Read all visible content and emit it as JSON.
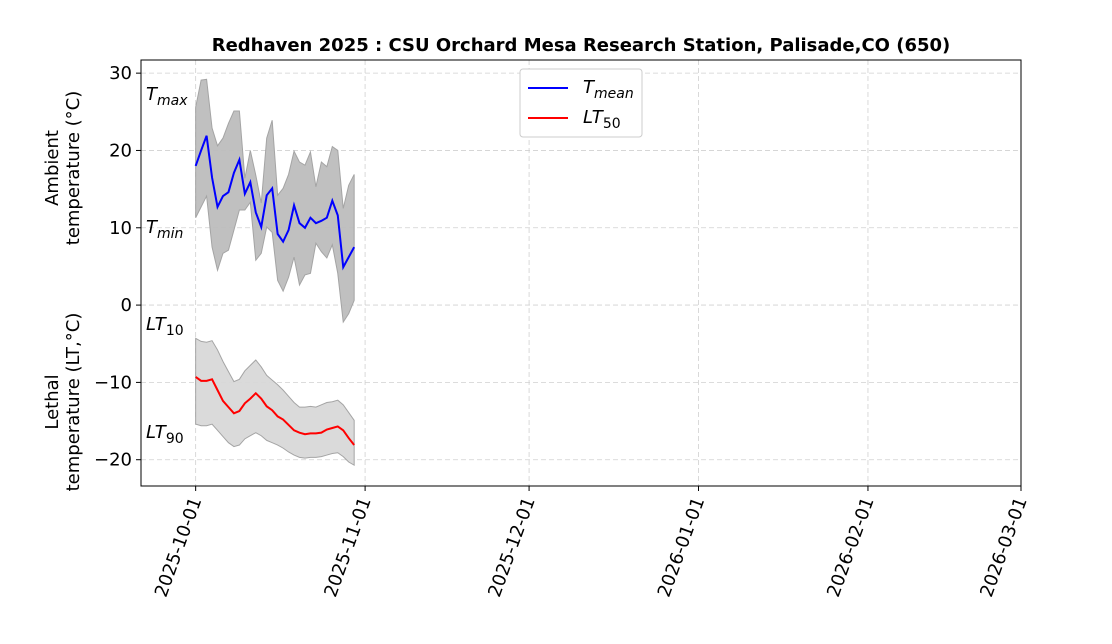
{
  "chart_data": {
    "type": "line",
    "title": "Redhaven 2025 : CSU Orchard Mesa Research Station, Palisade,CO (650)",
    "ylabel_top": [
      "Ambient",
      "temperature (°C)"
    ],
    "ylabel_bottom": [
      "Lethal",
      "temperature (LT,°C)"
    ],
    "start_date": "2025-10-01",
    "xlim": [
      "2025-09-21",
      "2026-03-01"
    ],
    "ylim": [
      -23.4,
      31.7
    ],
    "grid": true,
    "xticks": [
      "2025-10-01",
      "2025-11-01",
      "2025-12-01",
      "2026-01-01",
      "2026-02-01",
      "2026-03-01"
    ],
    "yticks": [
      30,
      20,
      10,
      0,
      -10,
      -20
    ],
    "band_labels": {
      "tmax": "max",
      "tmin": "min",
      "lt10": "10",
      "lt90": "90"
    },
    "legend": {
      "placement": "upper-center",
      "entries": [
        {
          "base": "T",
          "sub": "mean",
          "color": "#0000ff"
        },
        {
          "base": "LT",
          "sub": "50",
          "color": "#ff0000"
        }
      ]
    },
    "series": {
      "tmean": [
        18.0,
        20.0,
        21.9,
        16.5,
        12.7,
        14.1,
        14.6,
        17.1,
        18.8,
        14.4,
        15.9,
        12.0,
        10.1,
        14.2,
        15.1,
        9.2,
        8.2,
        9.7,
        12.9,
        10.6,
        10.0,
        11.3,
        10.6,
        10.9,
        11.3,
        13.5,
        11.6,
        4.9,
        6.2,
        7.5
      ],
      "tmax": [
        25.6,
        29.1,
        29.2,
        22.9,
        20.6,
        21.6,
        23.5,
        25.1,
        25.1,
        16.4,
        20.0,
        16.8,
        13.2,
        21.6,
        23.9,
        14.2,
        15.1,
        16.9,
        19.9,
        18.5,
        18.1,
        19.8,
        15.3,
        18.5,
        17.9,
        20.5,
        20.0,
        12.5,
        15.5,
        16.9
      ],
      "tmin": [
        11.3,
        12.7,
        14.1,
        7.5,
        4.5,
        6.7,
        7.1,
        9.7,
        12.3,
        12.3,
        13.3,
        5.8,
        6.7,
        10.1,
        9.4,
        3.2,
        1.8,
        3.6,
        6.2,
        2.6,
        3.9,
        4.1,
        8.0,
        6.9,
        6.1,
        7.8,
        4.1,
        -2.2,
        -1.1,
        0.6
      ],
      "lt50": [
        -9.3,
        -9.8,
        -9.8,
        -9.6,
        -11.0,
        -12.4,
        -13.2,
        -14.0,
        -13.7,
        -12.7,
        -12.1,
        -11.4,
        -12.1,
        -13.1,
        -13.6,
        -14.4,
        -14.8,
        -15.5,
        -16.2,
        -16.5,
        -16.7,
        -16.6,
        -16.6,
        -16.5,
        -16.1,
        -15.9,
        -15.7,
        -16.2,
        -17.2,
        -18.1
      ],
      "lt10": [
        -4.3,
        -4.7,
        -4.8,
        -4.6,
        -5.8,
        -7.3,
        -8.6,
        -9.9,
        -9.6,
        -8.5,
        -7.8,
        -7.1,
        -8.0,
        -9.1,
        -9.7,
        -10.3,
        -11.0,
        -11.8,
        -12.6,
        -13.2,
        -13.2,
        -13.1,
        -13.2,
        -12.9,
        -12.6,
        -12.5,
        -12.3,
        -12.9,
        -13.9,
        -14.9
      ],
      "lt90": [
        -15.4,
        -15.6,
        -15.6,
        -15.4,
        -16.2,
        -17.0,
        -17.8,
        -18.3,
        -18.1,
        -17.3,
        -16.9,
        -16.5,
        -16.9,
        -17.5,
        -17.8,
        -18.1,
        -18.5,
        -19.0,
        -19.4,
        -19.7,
        -19.8,
        -19.7,
        -19.7,
        -19.6,
        -19.4,
        -19.2,
        -19.1,
        -19.6,
        -20.3,
        -20.7
      ]
    },
    "colors": {
      "tmean": "#0000ff",
      "lt50": "#ff0000",
      "ambient_band": "#bdbdbd",
      "lethal_band": "#d9d9d9"
    }
  }
}
